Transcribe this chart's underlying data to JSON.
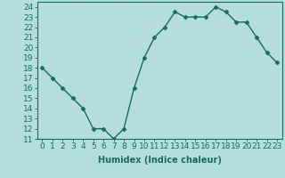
{
  "x": [
    0,
    1,
    2,
    3,
    4,
    5,
    6,
    7,
    8,
    9,
    10,
    11,
    12,
    13,
    14,
    15,
    16,
    17,
    18,
    19,
    20,
    21,
    22,
    23
  ],
  "y": [
    18,
    17,
    16,
    15,
    14,
    12,
    12,
    11,
    12,
    16,
    19,
    21,
    22,
    23.5,
    23,
    23,
    23,
    24,
    23.5,
    22.5,
    22.5,
    21,
    19.5,
    18.5
  ],
  "line_color": "#1a6b5a",
  "marker": "D",
  "marker_size": 2.5,
  "line_width": 1.0,
  "bg_color": "#b2dede",
  "grid_color": "#c8e8e8",
  "xlabel": "Humidex (Indice chaleur)",
  "tick_fontsize": 6.5,
  "xlim": [
    -0.5,
    23.5
  ],
  "ylim": [
    11,
    24.5
  ],
  "yticks": [
    11,
    12,
    13,
    14,
    15,
    16,
    17,
    18,
    19,
    20,
    21,
    22,
    23,
    24
  ],
  "xticks": [
    0,
    1,
    2,
    3,
    4,
    5,
    6,
    7,
    8,
    9,
    10,
    11,
    12,
    13,
    14,
    15,
    16,
    17,
    18,
    19,
    20,
    21,
    22,
    23
  ]
}
